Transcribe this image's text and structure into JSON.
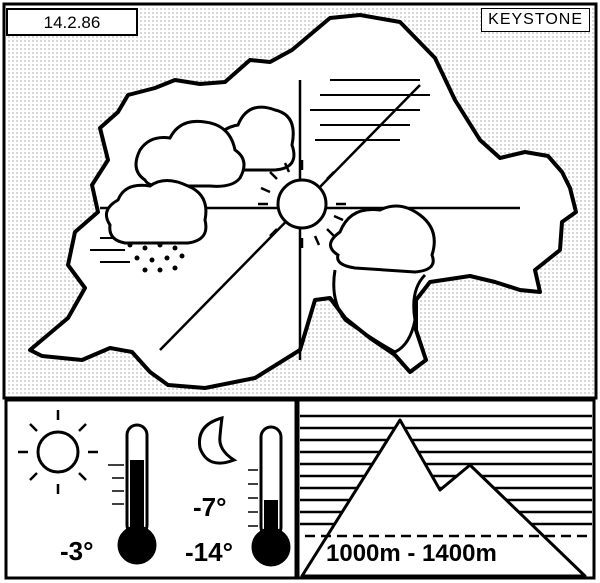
{
  "header": {
    "date": "14.2.86",
    "credit": "KEYSTONE"
  },
  "forecast": {
    "day": {
      "icon": "sun-icon",
      "temperature": "-3°"
    },
    "night": {
      "icon": "moon-icon",
      "temperature_high": "-7°",
      "temperature_low": "-14°"
    },
    "mountain": {
      "icon": "mountain-icon",
      "altitude_range": "1000m - 1400m"
    }
  },
  "map": {
    "icons": [
      "cloud-icon",
      "snow-cloud-icon",
      "sun-icon",
      "fog-lines"
    ]
  }
}
